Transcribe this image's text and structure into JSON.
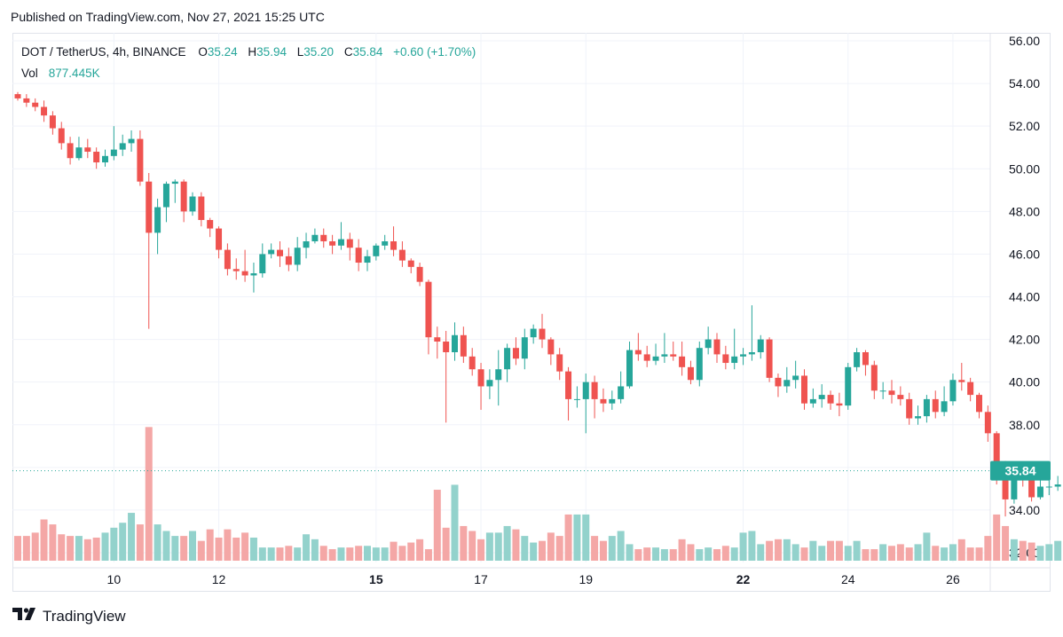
{
  "header": {
    "published": "Published on TradingView.com, Nov 27, 2021 15:25 UTC"
  },
  "legend": {
    "symbol": "DOT / TetherUS, 4h, BINANCE",
    "o_label": "O",
    "o": "35.24",
    "h_label": "H",
    "h": "35.94",
    "l_label": "L",
    "l": "35.20",
    "c_label": "C",
    "c": "35.84",
    "change": "+0.60 (+1.70%)",
    "vol_label": "Vol",
    "vol": "877.445K"
  },
  "footer": {
    "brand": "TradingView",
    "logo_icon": "tradingview-logo-icon"
  },
  "colors": {
    "up": "#26a69a",
    "down": "#ef5350",
    "up_vol": "#93d2cc",
    "down_vol": "#f4a7a6",
    "grid": "#f0f3fa"
  },
  "chart_data": {
    "type": "candlestick",
    "title": "",
    "ylim": [
      32,
      56
    ],
    "y_ticks": [
      "32.00",
      "34.00",
      "36.00",
      "38.00",
      "40.00",
      "42.00",
      "44.00",
      "46.00",
      "48.00",
      "50.00",
      "52.00",
      "54.00",
      "56.00"
    ],
    "x_ticks": [
      {
        "label": "10",
        "index": 11
      },
      {
        "label": "12",
        "index": 23
      },
      {
        "label": "15",
        "index": 41
      },
      {
        "label": "17",
        "index": 53
      },
      {
        "label": "19",
        "index": 65
      },
      {
        "label": "22",
        "index": 83
      },
      {
        "label": "24",
        "index": 95
      },
      {
        "label": "26",
        "index": 107
      }
    ],
    "last_price_label": "35.84",
    "candles": [
      [
        53.5,
        53.3,
        53.6,
        53.2
      ],
      [
        53.3,
        53.1,
        53.5,
        52.9
      ],
      [
        53.1,
        52.9,
        53.3,
        52.7
      ],
      [
        52.9,
        52.5,
        53.2,
        52.2
      ],
      [
        52.5,
        51.9,
        52.7,
        51.6
      ],
      [
        51.9,
        51.2,
        52.2,
        50.9
      ],
      [
        51.2,
        50.5,
        51.5,
        50.2
      ],
      [
        50.5,
        51.0,
        51.5,
        50.4
      ],
      [
        51.0,
        50.8,
        51.4,
        50.5
      ],
      [
        50.8,
        50.3,
        51.0,
        50.0
      ],
      [
        50.3,
        50.6,
        50.9,
        50.1
      ],
      [
        50.6,
        50.9,
        52.0,
        50.4
      ],
      [
        50.9,
        51.2,
        51.6,
        50.6
      ],
      [
        51.2,
        51.4,
        51.8,
        50.8
      ],
      [
        51.4,
        49.4,
        51.8,
        49.2
      ],
      [
        49.4,
        47.0,
        49.8,
        42.5
      ],
      [
        47.0,
        48.2,
        48.6,
        46.0
      ],
      [
        48.2,
        49.3,
        49.4,
        47.5
      ],
      [
        49.3,
        49.4,
        49.5,
        48.4
      ],
      [
        49.4,
        48.0,
        49.5,
        47.5
      ],
      [
        48.0,
        48.7,
        48.9,
        47.8
      ],
      [
        48.7,
        47.6,
        48.9,
        47.3
      ],
      [
        47.6,
        47.2,
        47.7,
        46.8
      ],
      [
        47.2,
        46.2,
        47.3,
        45.8
      ],
      [
        46.2,
        45.3,
        46.5,
        45.0
      ],
      [
        45.3,
        45.2,
        45.8,
        44.8
      ],
      [
        45.2,
        45.0,
        46.2,
        44.7
      ],
      [
        45.0,
        45.1,
        45.6,
        44.2
      ],
      [
        45.1,
        46.0,
        46.5,
        44.9
      ],
      [
        46.0,
        46.2,
        46.5,
        45.8
      ],
      [
        46.2,
        45.9,
        46.6,
        45.4
      ],
      [
        45.9,
        45.5,
        46.3,
        45.2
      ],
      [
        45.5,
        46.3,
        46.8,
        45.2
      ],
      [
        46.3,
        46.6,
        47.0,
        45.8
      ],
      [
        46.6,
        46.9,
        47.2,
        46.5
      ],
      [
        46.9,
        46.6,
        47.2,
        46.3
      ],
      [
        46.6,
        46.4,
        46.9,
        46.0
      ],
      [
        46.4,
        46.7,
        47.5,
        46.2
      ],
      [
        46.7,
        46.3,
        47.0,
        45.7
      ],
      [
        46.3,
        45.6,
        46.7,
        45.2
      ],
      [
        45.6,
        45.9,
        46.2,
        45.2
      ],
      [
        45.9,
        46.4,
        46.5,
        45.7
      ],
      [
        46.4,
        46.6,
        46.9,
        46.2
      ],
      [
        46.6,
        46.2,
        47.3,
        45.9
      ],
      [
        46.2,
        45.7,
        46.6,
        45.4
      ],
      [
        45.7,
        45.4,
        45.8,
        45.1
      ],
      [
        45.4,
        44.7,
        45.6,
        44.5
      ],
      [
        44.7,
        42.1,
        44.8,
        41.3
      ],
      [
        42.1,
        41.9,
        42.6,
        41.1
      ],
      [
        41.9,
        41.4,
        42.4,
        38.1
      ],
      [
        41.4,
        42.2,
        42.8,
        41.0
      ],
      [
        42.2,
        41.2,
        42.6,
        40.9
      ],
      [
        41.2,
        40.6,
        41.6,
        40.3
      ],
      [
        40.6,
        39.8,
        40.9,
        38.7
      ],
      [
        39.8,
        40.1,
        40.6,
        39.2
      ],
      [
        40.1,
        40.6,
        41.5,
        38.9
      ],
      [
        40.6,
        41.6,
        41.8,
        40.0
      ],
      [
        41.6,
        41.1,
        42.1,
        40.8
      ],
      [
        41.1,
        42.1,
        42.5,
        40.6
      ],
      [
        42.1,
        42.5,
        42.7,
        41.8
      ],
      [
        42.5,
        42.0,
        43.2,
        41.6
      ],
      [
        42.0,
        41.3,
        42.1,
        40.8
      ],
      [
        41.3,
        40.5,
        41.6,
        40.1
      ],
      [
        40.5,
        39.2,
        40.7,
        38.2
      ],
      [
        39.2,
        39.2,
        39.8,
        38.8
      ],
      [
        39.2,
        40.0,
        40.4,
        37.6
      ],
      [
        40.0,
        39.2,
        40.3,
        38.3
      ],
      [
        39.2,
        39.0,
        39.7,
        38.6
      ],
      [
        39.0,
        39.2,
        39.6,
        38.7
      ],
      [
        39.2,
        39.8,
        40.5,
        39.0
      ],
      [
        39.8,
        41.5,
        41.9,
        39.7
      ],
      [
        41.5,
        41.3,
        42.3,
        41.0
      ],
      [
        41.3,
        41.0,
        41.7,
        40.7
      ],
      [
        41.0,
        41.2,
        41.8,
        40.8
      ],
      [
        41.2,
        41.3,
        42.3,
        40.9
      ],
      [
        41.3,
        41.2,
        41.9,
        41.0
      ],
      [
        41.2,
        40.7,
        41.9,
        40.3
      ],
      [
        40.7,
        40.1,
        41.0,
        39.9
      ],
      [
        40.1,
        41.6,
        41.9,
        39.8
      ],
      [
        41.6,
        42.0,
        42.6,
        41.3
      ],
      [
        42.0,
        41.3,
        42.3,
        40.9
      ],
      [
        41.3,
        40.9,
        41.7,
        40.6
      ],
      [
        40.9,
        41.2,
        42.5,
        40.6
      ],
      [
        41.2,
        41.3,
        41.6,
        40.8
      ],
      [
        41.3,
        41.4,
        43.6,
        41.0
      ],
      [
        41.4,
        42.0,
        42.2,
        41.1
      ],
      [
        42.0,
        40.2,
        42.1,
        40.0
      ],
      [
        40.2,
        39.8,
        40.4,
        39.3
      ],
      [
        39.8,
        40.1,
        40.7,
        39.5
      ],
      [
        40.1,
        40.3,
        41.0,
        39.7
      ],
      [
        40.3,
        39.0,
        40.6,
        38.7
      ],
      [
        39.0,
        39.2,
        39.7,
        38.8
      ],
      [
        39.2,
        39.4,
        39.9,
        38.8
      ],
      [
        39.4,
        39.0,
        39.6,
        38.7
      ],
      [
        39.0,
        38.9,
        39.5,
        38.4
      ],
      [
        38.9,
        40.7,
        40.9,
        38.7
      ],
      [
        40.7,
        41.4,
        41.6,
        40.5
      ],
      [
        41.4,
        40.8,
        41.5,
        40.3
      ],
      [
        40.8,
        39.6,
        41.0,
        39.2
      ],
      [
        39.6,
        39.6,
        40.0,
        39.2
      ],
      [
        39.6,
        39.4,
        40.1,
        39.0
      ],
      [
        39.4,
        39.2,
        39.8,
        38.9
      ],
      [
        39.2,
        38.3,
        39.5,
        38.0
      ],
      [
        38.3,
        38.4,
        38.9,
        38.0
      ],
      [
        38.4,
        39.2,
        39.4,
        38.1
      ],
      [
        39.2,
        38.6,
        39.6,
        38.3
      ],
      [
        38.6,
        39.1,
        39.8,
        38.4
      ],
      [
        39.1,
        40.1,
        40.4,
        38.9
      ],
      [
        40.1,
        40.0,
        40.9,
        39.6
      ],
      [
        40.0,
        39.4,
        40.2,
        39.1
      ],
      [
        39.4,
        38.6,
        39.5,
        38.3
      ],
      [
        38.6,
        37.6,
        38.9,
        37.2
      ],
      [
        37.6,
        35.6,
        37.7,
        35.2
      ],
      [
        35.6,
        34.5,
        36.3,
        33.7
      ],
      [
        34.5,
        35.7,
        36.1,
        34.3
      ],
      [
        35.7,
        35.6,
        35.9,
        35.1
      ],
      [
        35.6,
        34.6,
        35.8,
        34.4
      ],
      [
        34.6,
        35.1,
        35.4,
        34.5
      ],
      [
        35.1,
        35.1,
        35.5,
        34.7
      ],
      [
        35.1,
        35.2,
        35.6,
        34.9
      ],
      [
        35.24,
        35.84,
        35.94,
        35.2
      ]
    ],
    "volumes": [
      30,
      30,
      34,
      50,
      44,
      32,
      30,
      30,
      26,
      28,
      34,
      40,
      46,
      58,
      44,
      162,
      44,
      36,
      30,
      30,
      36,
      24,
      38,
      28,
      38,
      28,
      34,
      28,
      16,
      16,
      16,
      18,
      16,
      32,
      26,
      18,
      14,
      16,
      16,
      18,
      18,
      16,
      16,
      23,
      18,
      22,
      26,
      14,
      86,
      40,
      92,
      42,
      36,
      26,
      34,
      34,
      42,
      38,
      30,
      22,
      24,
      34,
      30,
      56,
      56,
      56,
      30,
      24,
      30,
      36,
      20,
      14,
      16,
      16,
      14,
      14,
      26,
      20,
      14,
      16,
      14,
      18,
      16,
      34,
      36,
      20,
      24,
      26,
      26,
      20,
      16,
      24,
      18,
      24,
      24,
      18,
      24,
      14,
      14,
      20,
      18,
      20,
      16,
      20,
      34,
      18,
      16,
      20,
      26,
      16,
      16,
      30,
      56,
      42,
      26,
      24,
      22,
      18,
      20,
      24,
      16
    ]
  }
}
